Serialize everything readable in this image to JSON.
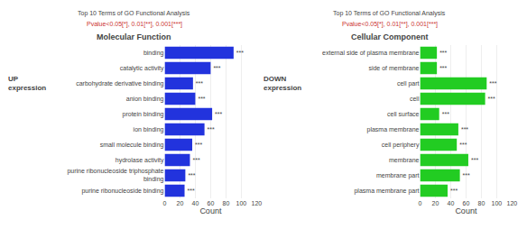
{
  "chart_data": [
    {
      "type": "bar",
      "orientation": "horizontal",
      "title": "Molecular Function",
      "subtitle": "Top 10 Terms of GO Functional Analysis",
      "annotations": [
        {
          "text": "Pvalue<0.05[*], 0.01[**], 0.001[***]",
          "color": "#cc3333"
        },
        {
          "text": "UP\nexpression"
        }
      ],
      "xlabel": "Count",
      "categories": [
        "binding",
        "catalytic activity",
        "carbohydrate derivative binding",
        "anion binding",
        "protein binding",
        "ion binding",
        "small molecule binding",
        "hydrolase activity",
        "purine ribonucleoside triphosphate\nbinding",
        "purine ribonucleoside binding"
      ],
      "values": [
        90,
        60,
        37,
        40,
        62,
        52,
        36,
        33,
        27,
        26
      ],
      "stars": [
        "***",
        "***",
        "***",
        "***",
        "***",
        "***",
        "***",
        "***",
        "***",
        "***"
      ],
      "color": "#2233dd",
      "xlim": [
        0,
        120
      ],
      "xticks": [
        0,
        20,
        40,
        60,
        80,
        100,
        120
      ],
      "grid": true
    },
    {
      "type": "bar",
      "orientation": "horizontal",
      "title": "Cellular Component",
      "subtitle": "Top 10 Terms of GO Functional Analysis",
      "annotations": [
        {
          "text": "Pvalue<0.05[*], 0.01[**], 0.001[***]",
          "color": "#cc3333"
        },
        {
          "text": "DOWN\nexpression"
        }
      ],
      "xlabel": "Count",
      "categories": [
        "external side of plasma membrane",
        "side of membrane",
        "cell part",
        "cell",
        "cell surface",
        "plasma membrane",
        "cell periphery",
        "membrane",
        "membrane part",
        "plasma membrane part"
      ],
      "values": [
        22,
        22,
        87,
        85,
        25,
        50,
        48,
        63,
        52,
        36
      ],
      "stars": [
        "***",
        "***",
        "***",
        "***",
        "***",
        "***",
        "***",
        "***",
        "***",
        "***"
      ],
      "color": "#22cc22",
      "xlim": [
        0,
        120
      ],
      "xticks": [
        0,
        20,
        40,
        60,
        80,
        100,
        120
      ],
      "grid": true
    }
  ]
}
